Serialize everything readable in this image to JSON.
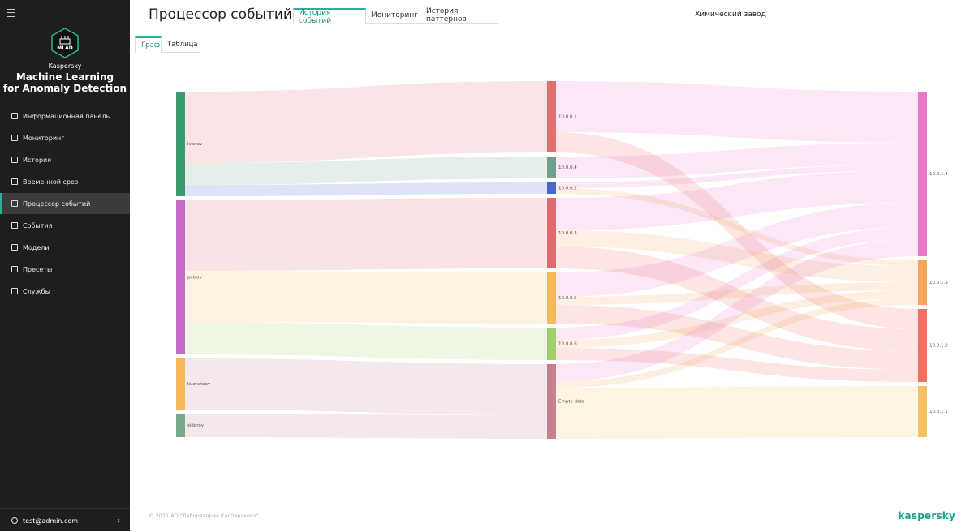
{
  "sidebar": {
    "logo_text": "MLAD",
    "brand": "Kaspersky",
    "product_lines": [
      "Machine Learning",
      "for Anomaly Detection"
    ],
    "menu": [
      "Информационная панель",
      "Мониторинг",
      "История",
      "Временной срез",
      "Процессор событий",
      "События",
      "Модели",
      "Пресеты",
      "Службы"
    ],
    "active": "Процессор событий",
    "user": "test@admin.com"
  },
  "header": {
    "title": "Процессор событий",
    "tabs": [
      "История событий",
      "Мониторинг",
      "История паттернов"
    ],
    "active_tab": "История событий",
    "site": "Химический завод"
  },
  "view_tabs": [
    "Граф",
    "Таблица"
  ],
  "active_view": "Граф",
  "graph": {
    "columns": [
      [
        {
          "label": "ivanov",
          "color": "#3a9a6e"
        },
        {
          "label": "petrov",
          "color": "#c86bc8"
        },
        {
          "label": "kuznetcov",
          "color": "#f5b85a"
        },
        {
          "label": "sidorov",
          "color": "#7aaa8e"
        }
      ],
      [
        {
          "label": "10.0.0.1",
          "color": "#e07070"
        },
        {
          "label": "10.0.0.4",
          "color": "#6fa08e"
        },
        {
          "label": "10.0.0.2",
          "color": "#4a66c8"
        },
        {
          "label": "10.0.0.3",
          "color": "#e06a70"
        },
        {
          "label": "10.0.0.5",
          "color": "#f5b85a"
        },
        {
          "label": "10.0.0.6",
          "color": "#9fd06c"
        },
        {
          "label": "Empty data",
          "color": "#c88090"
        }
      ],
      [
        {
          "label": "10.0.1.4",
          "color": "#e878c8"
        },
        {
          "label": "10.0.1.3",
          "color": "#f5a55a"
        },
        {
          "label": "10.0.1.2",
          "color": "#f07060"
        },
        {
          "label": "10.0.1.1",
          "color": "#f5c060"
        }
      ]
    ],
    "links": [
      {
        "source": "ivanov",
        "target": "10.0.0.1",
        "value": 88
      },
      {
        "source": "ivanov",
        "target": "10.0.0.4",
        "value": 27
      },
      {
        "source": "ivanov",
        "target": "10.0.0.2",
        "value": 14
      },
      {
        "source": "petrov",
        "target": "10.0.0.3",
        "value": 87
      },
      {
        "source": "petrov",
        "target": "10.0.0.5",
        "value": 63
      },
      {
        "source": "petrov",
        "target": "10.0.0.6",
        "value": 40
      },
      {
        "source": "kuznetcov",
        "target": "Empty data",
        "value": 63
      },
      {
        "source": "sidorov",
        "target": "Empty data",
        "value": 29
      },
      {
        "source": "10.0.0.1",
        "target": "10.0.1.4",
        "value": 63
      },
      {
        "source": "10.0.0.1",
        "target": "10.0.1.2",
        "value": 25
      },
      {
        "source": "10.0.0.4",
        "target": "10.0.1.4",
        "value": 27
      },
      {
        "source": "10.0.0.2",
        "target": "10.0.1.4",
        "value": 7
      },
      {
        "source": "10.0.0.2",
        "target": "10.0.1.3",
        "value": 7
      },
      {
        "source": "10.0.0.3",
        "target": "10.0.1.4",
        "value": 40
      },
      {
        "source": "10.0.0.3",
        "target": "10.0.1.3",
        "value": 20
      },
      {
        "source": "10.0.0.3",
        "target": "10.0.1.2",
        "value": 27
      },
      {
        "source": "10.0.0.5",
        "target": "10.0.1.4",
        "value": 30
      },
      {
        "source": "10.0.0.5",
        "target": "10.0.1.3",
        "value": 10
      },
      {
        "source": "10.0.0.5",
        "target": "10.0.1.2",
        "value": 23
      },
      {
        "source": "10.0.0.6",
        "target": "10.0.1.4",
        "value": 15
      },
      {
        "source": "10.0.0.6",
        "target": "10.0.1.3",
        "value": 10
      },
      {
        "source": "10.0.0.6",
        "target": "10.0.1.2",
        "value": 15
      },
      {
        "source": "Empty data",
        "target": "10.0.1.4",
        "value": 21
      },
      {
        "source": "Empty data",
        "target": "10.0.1.3",
        "value": 8
      },
      {
        "source": "Empty data",
        "target": "10.0.1.1",
        "value": 63
      }
    ]
  },
  "footer": {
    "copyright": "© 2021 АО \"Лаборатория Касперского\"",
    "logo": "kaspersky"
  }
}
